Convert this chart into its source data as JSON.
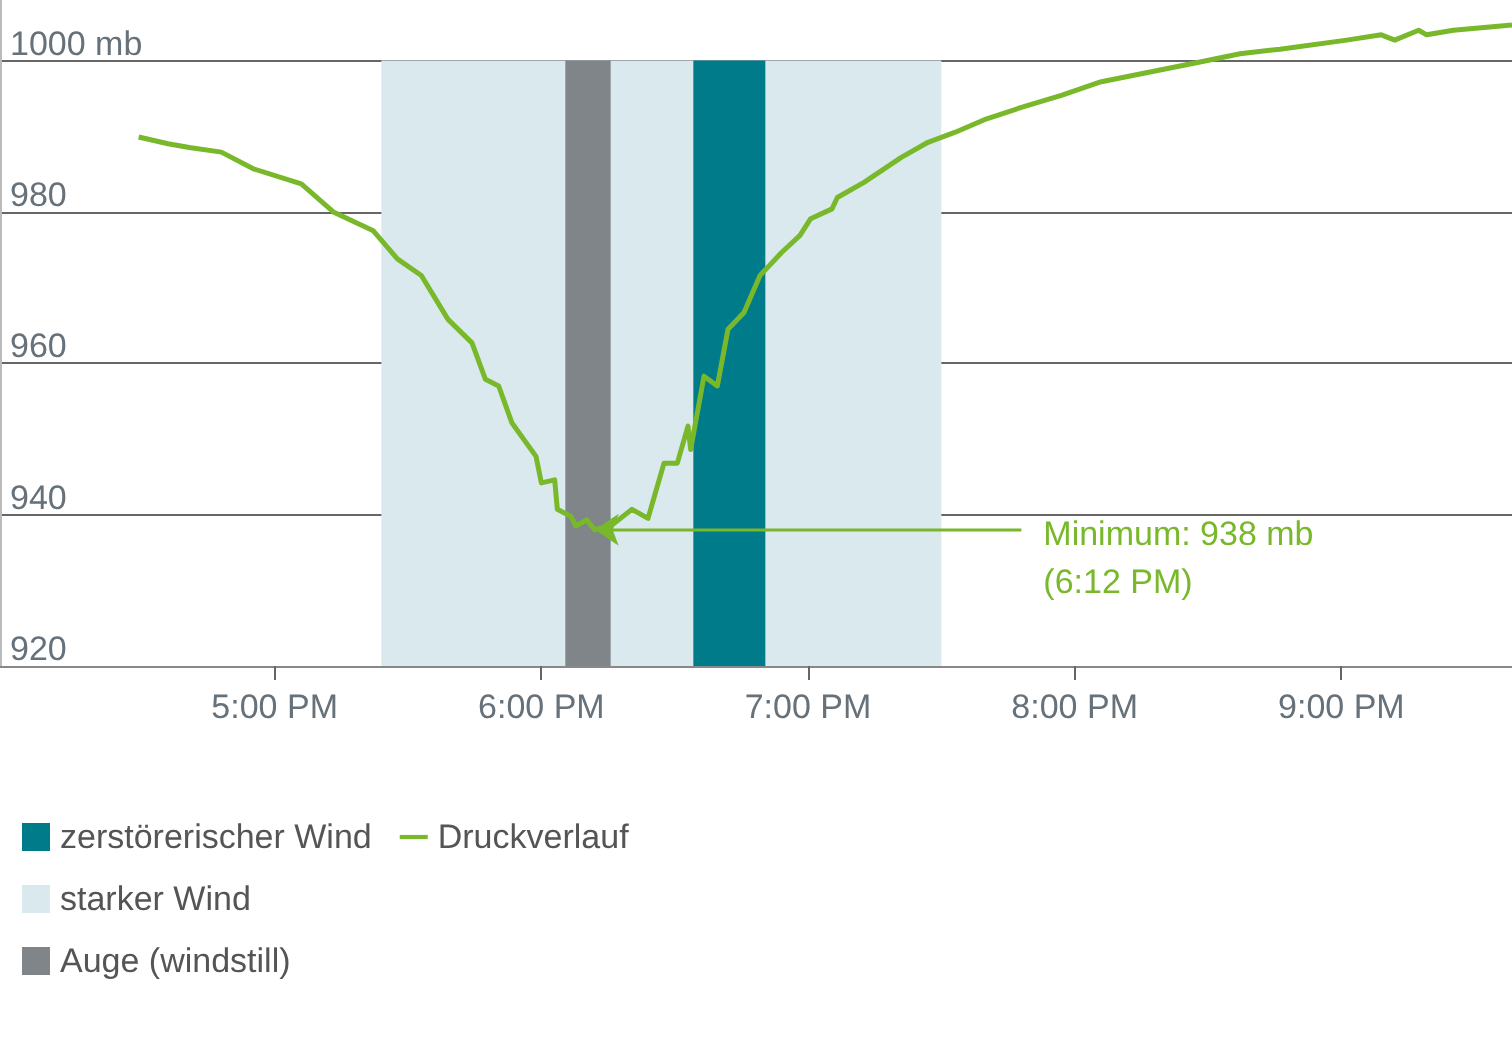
{
  "chart_data": {
    "type": "line",
    "x": [
      16.49,
      16.6,
      16.68,
      16.8,
      16.92,
      17.1,
      17.22,
      17.37,
      17.46,
      17.55,
      17.65,
      17.74,
      17.79,
      17.84,
      17.89,
      17.98,
      18.0,
      18.05,
      18.06,
      18.11,
      18.13,
      18.17,
      18.2,
      18.26,
      18.34,
      18.4,
      18.46,
      18.51,
      18.55,
      18.56,
      18.61,
      18.66,
      18.7,
      18.76,
      18.82,
      18.9,
      18.97,
      19.01,
      19.09,
      19.11,
      19.21,
      19.35,
      19.45,
      19.55,
      19.67,
      19.8,
      19.95,
      20.1,
      20.47,
      20.62,
      20.77,
      21.02,
      21.15,
      21.2,
      21.29,
      21.32,
      21.42,
      21.64
    ],
    "series": [
      {
        "name": "Druckverlauf",
        "color": "#78b82a",
        "values": [
          989.9,
          989.0,
          988.5,
          987.9,
          985.7,
          983.7,
          980.0,
          977.5,
          973.8,
          971.6,
          965.8,
          962.7,
          957.9,
          957.0,
          952.1,
          947.7,
          944.2,
          944.6,
          940.7,
          939.8,
          938.5,
          939.3,
          938,
          938.5,
          940.7,
          939.5,
          946.8,
          946.8,
          951.7,
          948.6,
          958.3,
          957.0,
          964.5,
          966.7,
          971.6,
          974.6,
          976.9,
          979.1,
          980.4,
          981.9,
          983.9,
          987.2,
          989.2,
          990.5,
          992.3,
          993.8,
          995.4,
          997.2,
          999.8,
          1000.9,
          1001.5,
          1002.7,
          1003.4,
          1002.7,
          1004.0,
          1003.4,
          1004.0,
          1004.7
        ]
      }
    ],
    "xlim": [
      15.97,
      21.64
    ],
    "xticks": [
      {
        "value": 17,
        "label": "5:00 PM"
      },
      {
        "value": 18,
        "label": "6:00 PM"
      },
      {
        "value": 19,
        "label": "7:00 PM"
      },
      {
        "value": 20,
        "label": "8:00 PM"
      },
      {
        "value": 21,
        "label": "9:00 PM"
      }
    ],
    "ylim": [
      920,
      1008
    ],
    "yticks": [
      920,
      940,
      960,
      980,
      {
        "value": 1000,
        "label": "1000 mb"
      }
    ],
    "bands": [
      {
        "axis": "x",
        "from": 18.57,
        "to": 18.84,
        "label": "zerstörerischer Wind",
        "color": "#007b8a"
      },
      {
        "axis": "x",
        "from": 17.4,
        "to": 19.5,
        "label": "starker Wind",
        "color": "#d9e9ee"
      },
      {
        "axis": "x",
        "from": 18.09,
        "to": 18.26,
        "label": "Auge (windstill)",
        "color": "#7f8589"
      }
    ],
    "annotations": [
      {
        "text": "Minimum: 938 mb\n(6:12 PM)",
        "x": 18.2,
        "y": 938
      }
    ],
    "grid": "y",
    "legend": "bottom left",
    "marker": "none",
    "line_style": "solid"
  }
}
